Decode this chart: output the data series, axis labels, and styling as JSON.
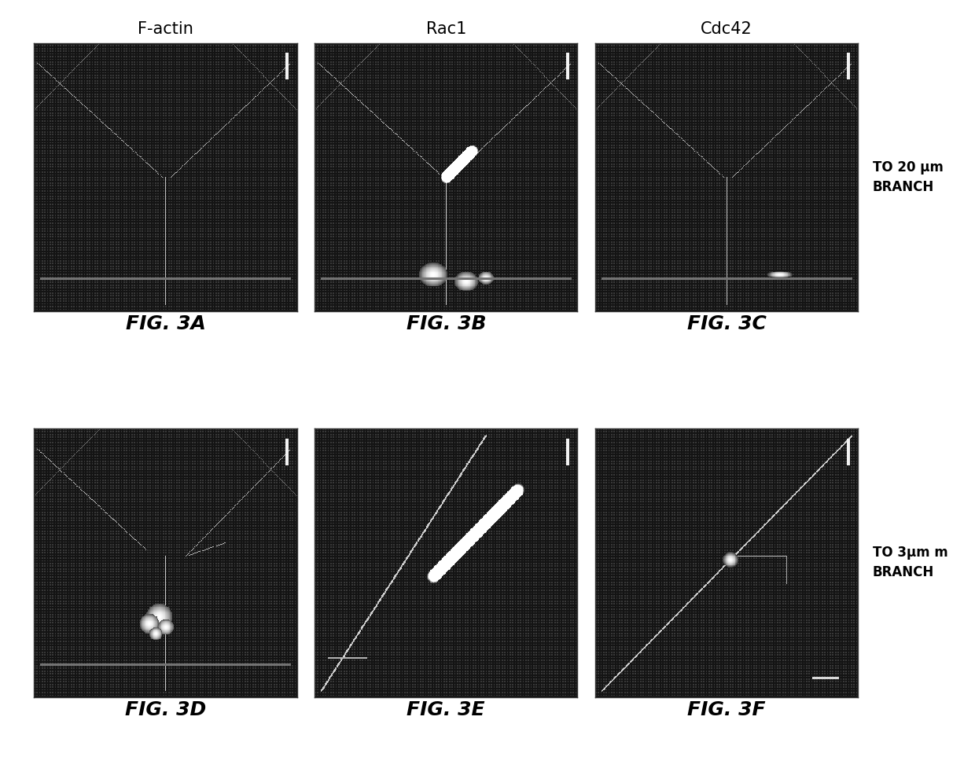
{
  "figure_width": 12.4,
  "figure_height": 9.91,
  "dpi": 100,
  "background_color": "#ffffff",
  "col_titles": [
    "F-actin",
    "Rac1",
    "Cdc42"
  ],
  "col_title_fontsize": 15,
  "row_labels": [
    "TO 20 μm\nBRANCH",
    "TO 3μm m\nBRANCH"
  ],
  "row_label_fontsize": 12,
  "fig_labels": [
    "FIG. 3A",
    "FIG. 3B",
    "FIG. 3C",
    "FIG. 3D",
    "FIG. 3E",
    "FIG. 3F"
  ],
  "fig_label_fontsize": 18,
  "fig_label_style": "italic",
  "fig_label_weight": "bold",
  "n_rows": 2,
  "n_cols": 3
}
